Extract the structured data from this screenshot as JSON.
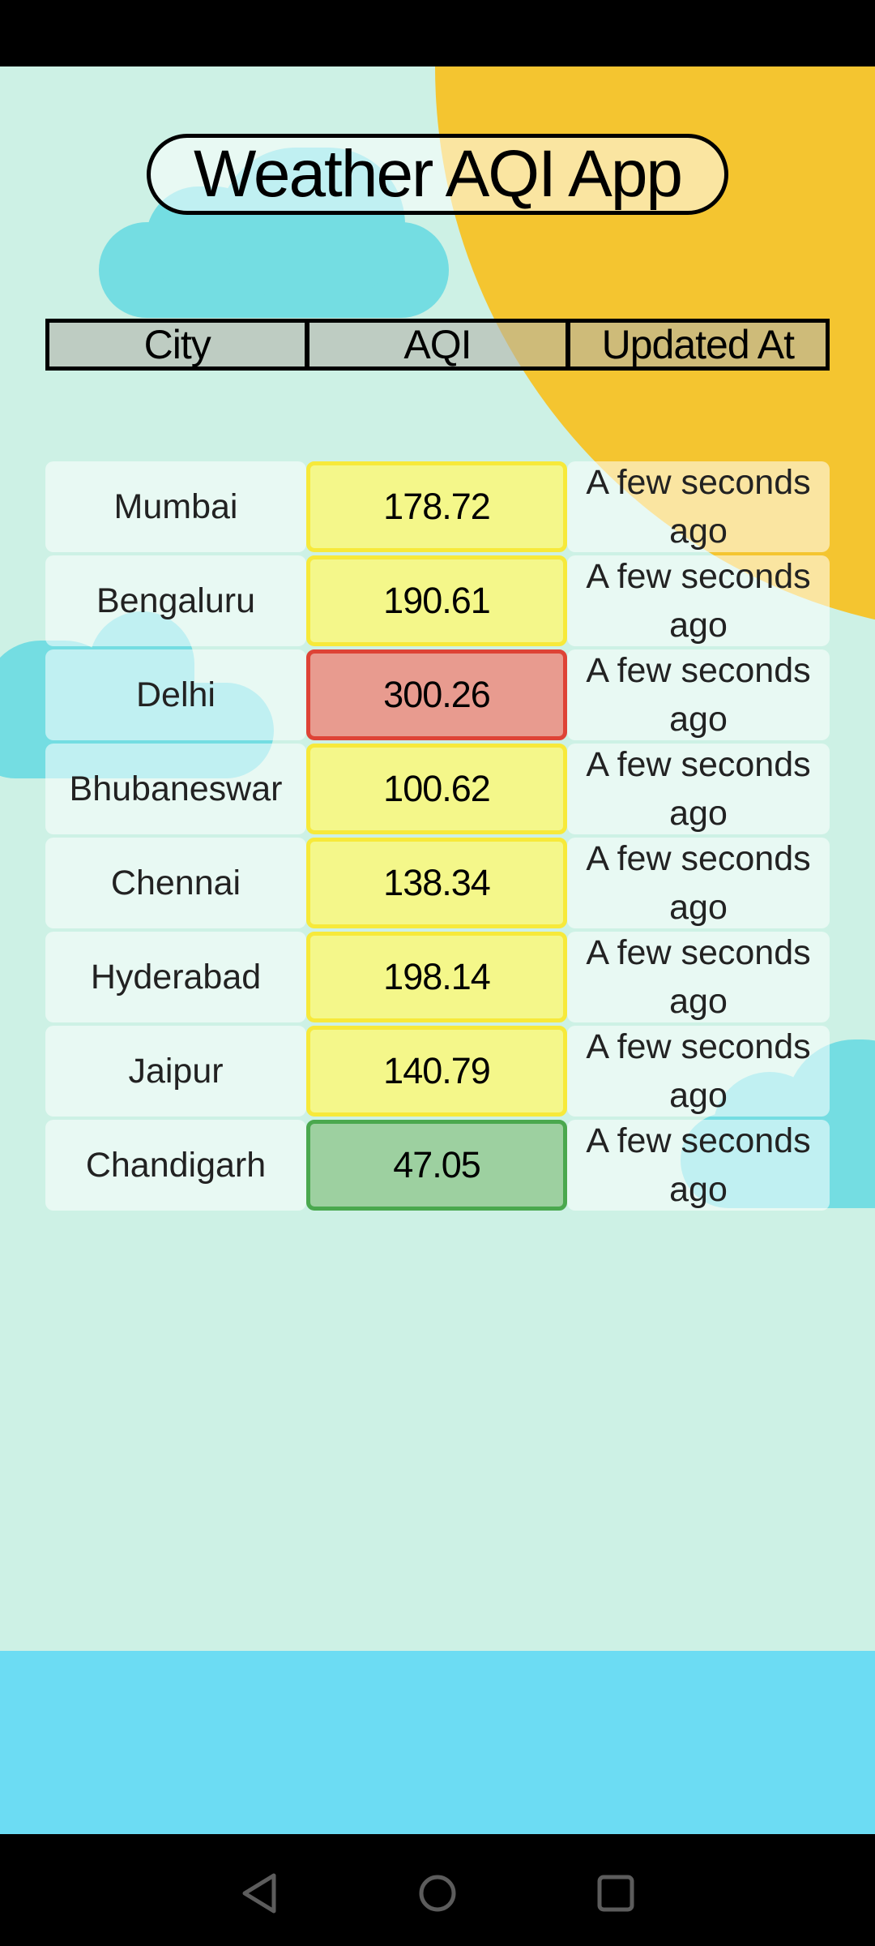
{
  "app": {
    "title": "Weather AQI App"
  },
  "table": {
    "headers": {
      "city": "City",
      "aqi": "AQI",
      "updated": "Updated At"
    },
    "rows": [
      {
        "city": "Mumbai",
        "aqi": "178.72",
        "updated": "A few seconds ago",
        "level": "moderate"
      },
      {
        "city": "Bengaluru",
        "aqi": "190.61",
        "updated": "A few seconds ago",
        "level": "moderate"
      },
      {
        "city": "Delhi",
        "aqi": "300.26",
        "updated": "A few seconds ago",
        "level": "bad"
      },
      {
        "city": "Bhubaneswar",
        "aqi": "100.62",
        "updated": "A few seconds ago",
        "level": "moderate"
      },
      {
        "city": "Chennai",
        "aqi": "138.34",
        "updated": "A few seconds ago",
        "level": "moderate"
      },
      {
        "city": "Hyderabad",
        "aqi": "198.14",
        "updated": "A few seconds ago",
        "level": "moderate"
      },
      {
        "city": "Jaipur",
        "aqi": "140.79",
        "updated": "A few seconds ago",
        "level": "moderate"
      },
      {
        "city": "Chandigarh",
        "aqi": "47.05",
        "updated": "A few seconds ago",
        "level": "good"
      }
    ]
  },
  "colors": {
    "background": "#cdf1e5",
    "sun": "#f4c530",
    "cloud": "#74dde2",
    "aqi_moderate": "#f4f78a",
    "aqi_bad": "#e89b8f",
    "aqi_good": "#9dd0a0",
    "bottom_band": "#6cdcf3"
  },
  "icons": {
    "nav_back": "back-triangle-icon",
    "nav_home": "home-circle-icon",
    "nav_recents": "recents-square-icon"
  }
}
